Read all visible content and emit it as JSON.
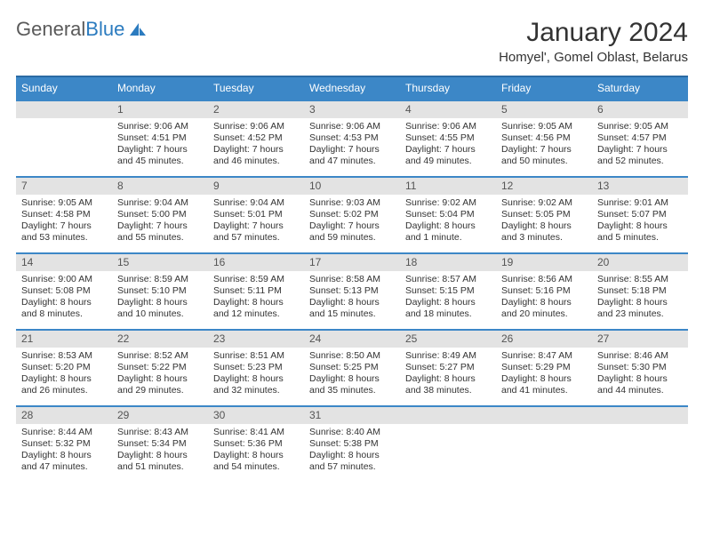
{
  "brand": {
    "part1": "General",
    "part2": "Blue"
  },
  "title": "January 2024",
  "location": "Homyel', Gomel Oblast, Belarus",
  "colors": {
    "header_bg": "#3c87c7",
    "header_border": "#2b6aa3",
    "week_divider": "#3c87c7",
    "daynum_bg": "#e3e3e3",
    "text": "#333333",
    "brand_gray": "#5a5a5a",
    "brand_blue": "#2b7bbf",
    "page_bg": "#ffffff"
  },
  "typography": {
    "title_fontsize": 30,
    "location_fontsize": 15,
    "weekday_fontsize": 12,
    "daynum_fontsize": 12,
    "body_fontsize": 10.5
  },
  "weekdays": [
    "Sunday",
    "Monday",
    "Tuesday",
    "Wednesday",
    "Thursday",
    "Friday",
    "Saturday"
  ],
  "weeks": [
    [
      {
        "num": "",
        "lines": []
      },
      {
        "num": "1",
        "lines": [
          "Sunrise: 9:06 AM",
          "Sunset: 4:51 PM",
          "Daylight: 7 hours",
          "and 45 minutes."
        ]
      },
      {
        "num": "2",
        "lines": [
          "Sunrise: 9:06 AM",
          "Sunset: 4:52 PM",
          "Daylight: 7 hours",
          "and 46 minutes."
        ]
      },
      {
        "num": "3",
        "lines": [
          "Sunrise: 9:06 AM",
          "Sunset: 4:53 PM",
          "Daylight: 7 hours",
          "and 47 minutes."
        ]
      },
      {
        "num": "4",
        "lines": [
          "Sunrise: 9:06 AM",
          "Sunset: 4:55 PM",
          "Daylight: 7 hours",
          "and 49 minutes."
        ]
      },
      {
        "num": "5",
        "lines": [
          "Sunrise: 9:05 AM",
          "Sunset: 4:56 PM",
          "Daylight: 7 hours",
          "and 50 minutes."
        ]
      },
      {
        "num": "6",
        "lines": [
          "Sunrise: 9:05 AM",
          "Sunset: 4:57 PM",
          "Daylight: 7 hours",
          "and 52 minutes."
        ]
      }
    ],
    [
      {
        "num": "7",
        "lines": [
          "Sunrise: 9:05 AM",
          "Sunset: 4:58 PM",
          "Daylight: 7 hours",
          "and 53 minutes."
        ]
      },
      {
        "num": "8",
        "lines": [
          "Sunrise: 9:04 AM",
          "Sunset: 5:00 PM",
          "Daylight: 7 hours",
          "and 55 minutes."
        ]
      },
      {
        "num": "9",
        "lines": [
          "Sunrise: 9:04 AM",
          "Sunset: 5:01 PM",
          "Daylight: 7 hours",
          "and 57 minutes."
        ]
      },
      {
        "num": "10",
        "lines": [
          "Sunrise: 9:03 AM",
          "Sunset: 5:02 PM",
          "Daylight: 7 hours",
          "and 59 minutes."
        ]
      },
      {
        "num": "11",
        "lines": [
          "Sunrise: 9:02 AM",
          "Sunset: 5:04 PM",
          "Daylight: 8 hours",
          "and 1 minute."
        ]
      },
      {
        "num": "12",
        "lines": [
          "Sunrise: 9:02 AM",
          "Sunset: 5:05 PM",
          "Daylight: 8 hours",
          "and 3 minutes."
        ]
      },
      {
        "num": "13",
        "lines": [
          "Sunrise: 9:01 AM",
          "Sunset: 5:07 PM",
          "Daylight: 8 hours",
          "and 5 minutes."
        ]
      }
    ],
    [
      {
        "num": "14",
        "lines": [
          "Sunrise: 9:00 AM",
          "Sunset: 5:08 PM",
          "Daylight: 8 hours",
          "and 8 minutes."
        ]
      },
      {
        "num": "15",
        "lines": [
          "Sunrise: 8:59 AM",
          "Sunset: 5:10 PM",
          "Daylight: 8 hours",
          "and 10 minutes."
        ]
      },
      {
        "num": "16",
        "lines": [
          "Sunrise: 8:59 AM",
          "Sunset: 5:11 PM",
          "Daylight: 8 hours",
          "and 12 minutes."
        ]
      },
      {
        "num": "17",
        "lines": [
          "Sunrise: 8:58 AM",
          "Sunset: 5:13 PM",
          "Daylight: 8 hours",
          "and 15 minutes."
        ]
      },
      {
        "num": "18",
        "lines": [
          "Sunrise: 8:57 AM",
          "Sunset: 5:15 PM",
          "Daylight: 8 hours",
          "and 18 minutes."
        ]
      },
      {
        "num": "19",
        "lines": [
          "Sunrise: 8:56 AM",
          "Sunset: 5:16 PM",
          "Daylight: 8 hours",
          "and 20 minutes."
        ]
      },
      {
        "num": "20",
        "lines": [
          "Sunrise: 8:55 AM",
          "Sunset: 5:18 PM",
          "Daylight: 8 hours",
          "and 23 minutes."
        ]
      }
    ],
    [
      {
        "num": "21",
        "lines": [
          "Sunrise: 8:53 AM",
          "Sunset: 5:20 PM",
          "Daylight: 8 hours",
          "and 26 minutes."
        ]
      },
      {
        "num": "22",
        "lines": [
          "Sunrise: 8:52 AM",
          "Sunset: 5:22 PM",
          "Daylight: 8 hours",
          "and 29 minutes."
        ]
      },
      {
        "num": "23",
        "lines": [
          "Sunrise: 8:51 AM",
          "Sunset: 5:23 PM",
          "Daylight: 8 hours",
          "and 32 minutes."
        ]
      },
      {
        "num": "24",
        "lines": [
          "Sunrise: 8:50 AM",
          "Sunset: 5:25 PM",
          "Daylight: 8 hours",
          "and 35 minutes."
        ]
      },
      {
        "num": "25",
        "lines": [
          "Sunrise: 8:49 AM",
          "Sunset: 5:27 PM",
          "Daylight: 8 hours",
          "and 38 minutes."
        ]
      },
      {
        "num": "26",
        "lines": [
          "Sunrise: 8:47 AM",
          "Sunset: 5:29 PM",
          "Daylight: 8 hours",
          "and 41 minutes."
        ]
      },
      {
        "num": "27",
        "lines": [
          "Sunrise: 8:46 AM",
          "Sunset: 5:30 PM",
          "Daylight: 8 hours",
          "and 44 minutes."
        ]
      }
    ],
    [
      {
        "num": "28",
        "lines": [
          "Sunrise: 8:44 AM",
          "Sunset: 5:32 PM",
          "Daylight: 8 hours",
          "and 47 minutes."
        ]
      },
      {
        "num": "29",
        "lines": [
          "Sunrise: 8:43 AM",
          "Sunset: 5:34 PM",
          "Daylight: 8 hours",
          "and 51 minutes."
        ]
      },
      {
        "num": "30",
        "lines": [
          "Sunrise: 8:41 AM",
          "Sunset: 5:36 PM",
          "Daylight: 8 hours",
          "and 54 minutes."
        ]
      },
      {
        "num": "31",
        "lines": [
          "Sunrise: 8:40 AM",
          "Sunset: 5:38 PM",
          "Daylight: 8 hours",
          "and 57 minutes."
        ]
      },
      {
        "num": "",
        "lines": []
      },
      {
        "num": "",
        "lines": []
      },
      {
        "num": "",
        "lines": []
      }
    ]
  ]
}
